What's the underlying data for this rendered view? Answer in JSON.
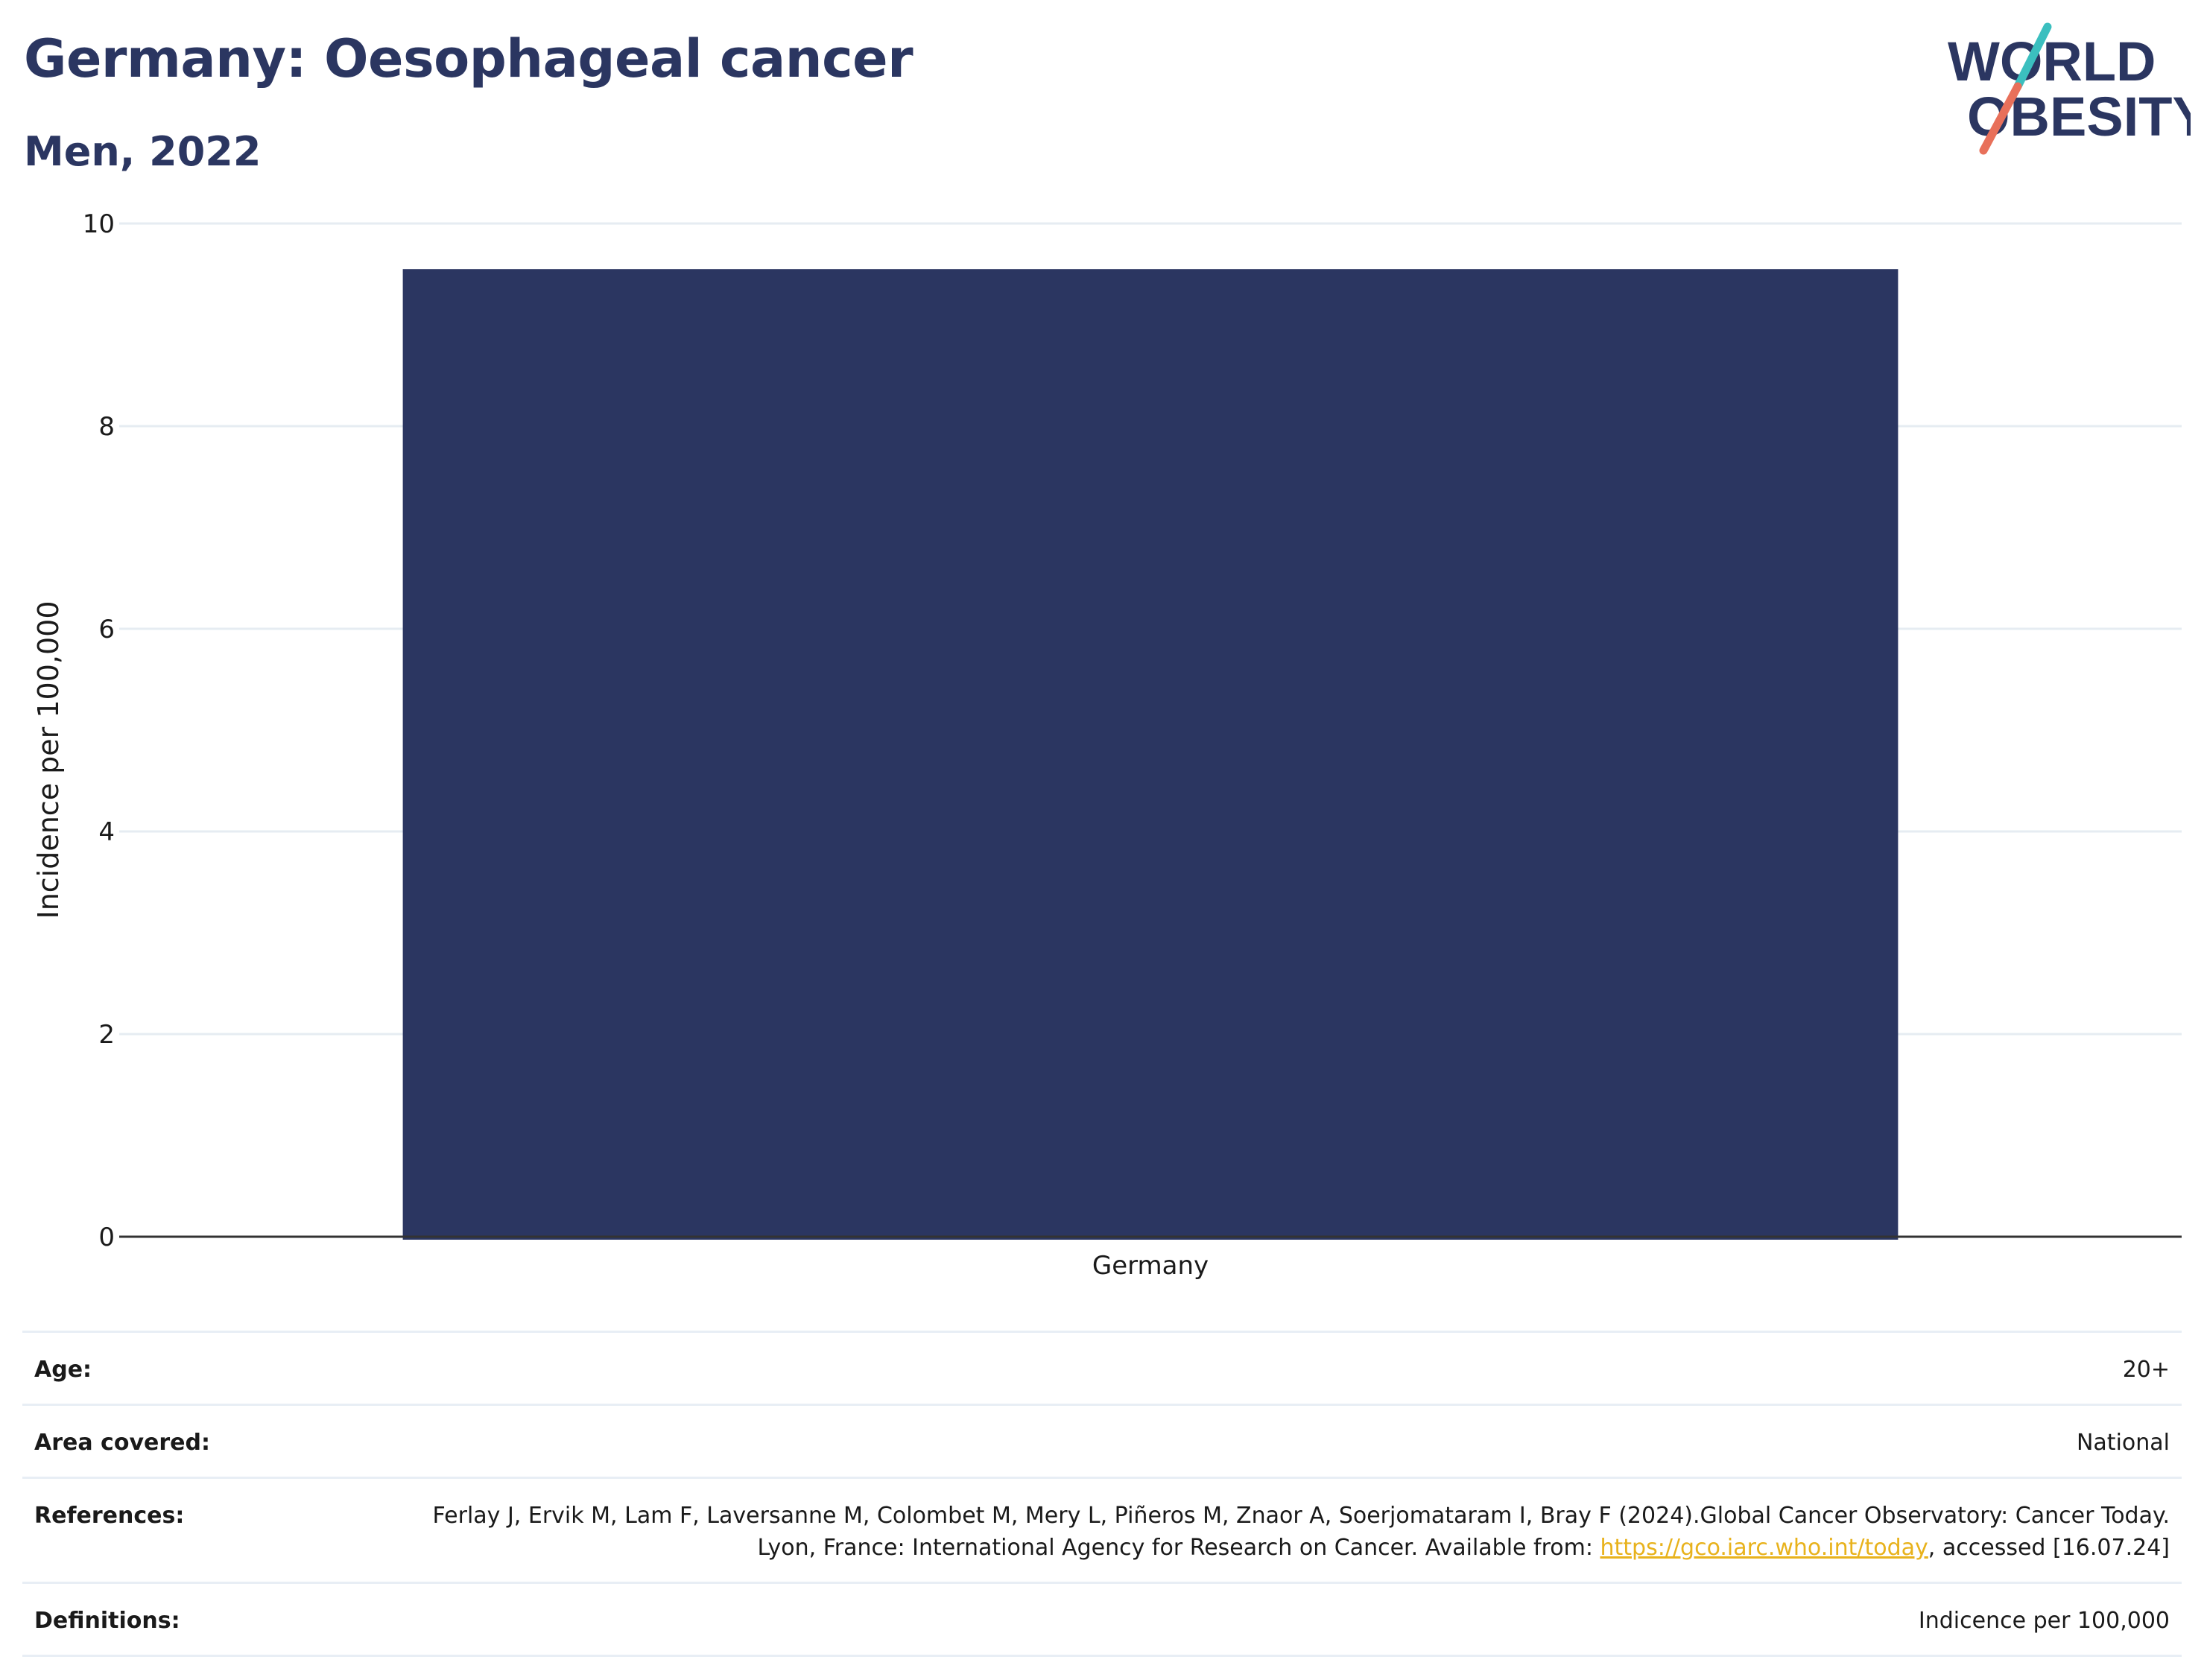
{
  "header": {
    "title": "Germany: Oesophageal cancer",
    "subtitle": "Men, 2022"
  },
  "logo": {
    "line1": "WORLD",
    "line2": "OBESITY",
    "colors": {
      "text": "#2b3661",
      "slash_top": "#3bbfbf",
      "slash_bottom": "#e8705a"
    }
  },
  "chart_data": {
    "type": "bar",
    "categories": [
      "Germany"
    ],
    "values": [
      9.55
    ],
    "ylabel": "Incidence per 100,000",
    "xlabel": "",
    "ylim": [
      0,
      10
    ],
    "yticks": [
      0,
      2,
      4,
      6,
      8,
      10
    ],
    "grid": true,
    "bar_color": "#2b3661"
  },
  "meta": {
    "rows": [
      {
        "key": "Age:",
        "value": "20+"
      },
      {
        "key": "Area covered:",
        "value": "National"
      },
      {
        "key": "References:",
        "value_parts": {
          "text1": "Ferlay J, Ervik M, Lam F, Laversanne M, Colombet M, Mery L, Piñeros M, Znaor A, Soerjomataram I, Bray F (2024).Global Cancer Observatory: Cancer Today. Lyon, France: International Agency for Research on Cancer. Available from: ",
          "link": "https://gco.iarc.who.int/today",
          "text2": ", accessed [16.07.24]"
        }
      },
      {
        "key": "Definitions:",
        "value": "Indicence per 100,000"
      }
    ]
  }
}
